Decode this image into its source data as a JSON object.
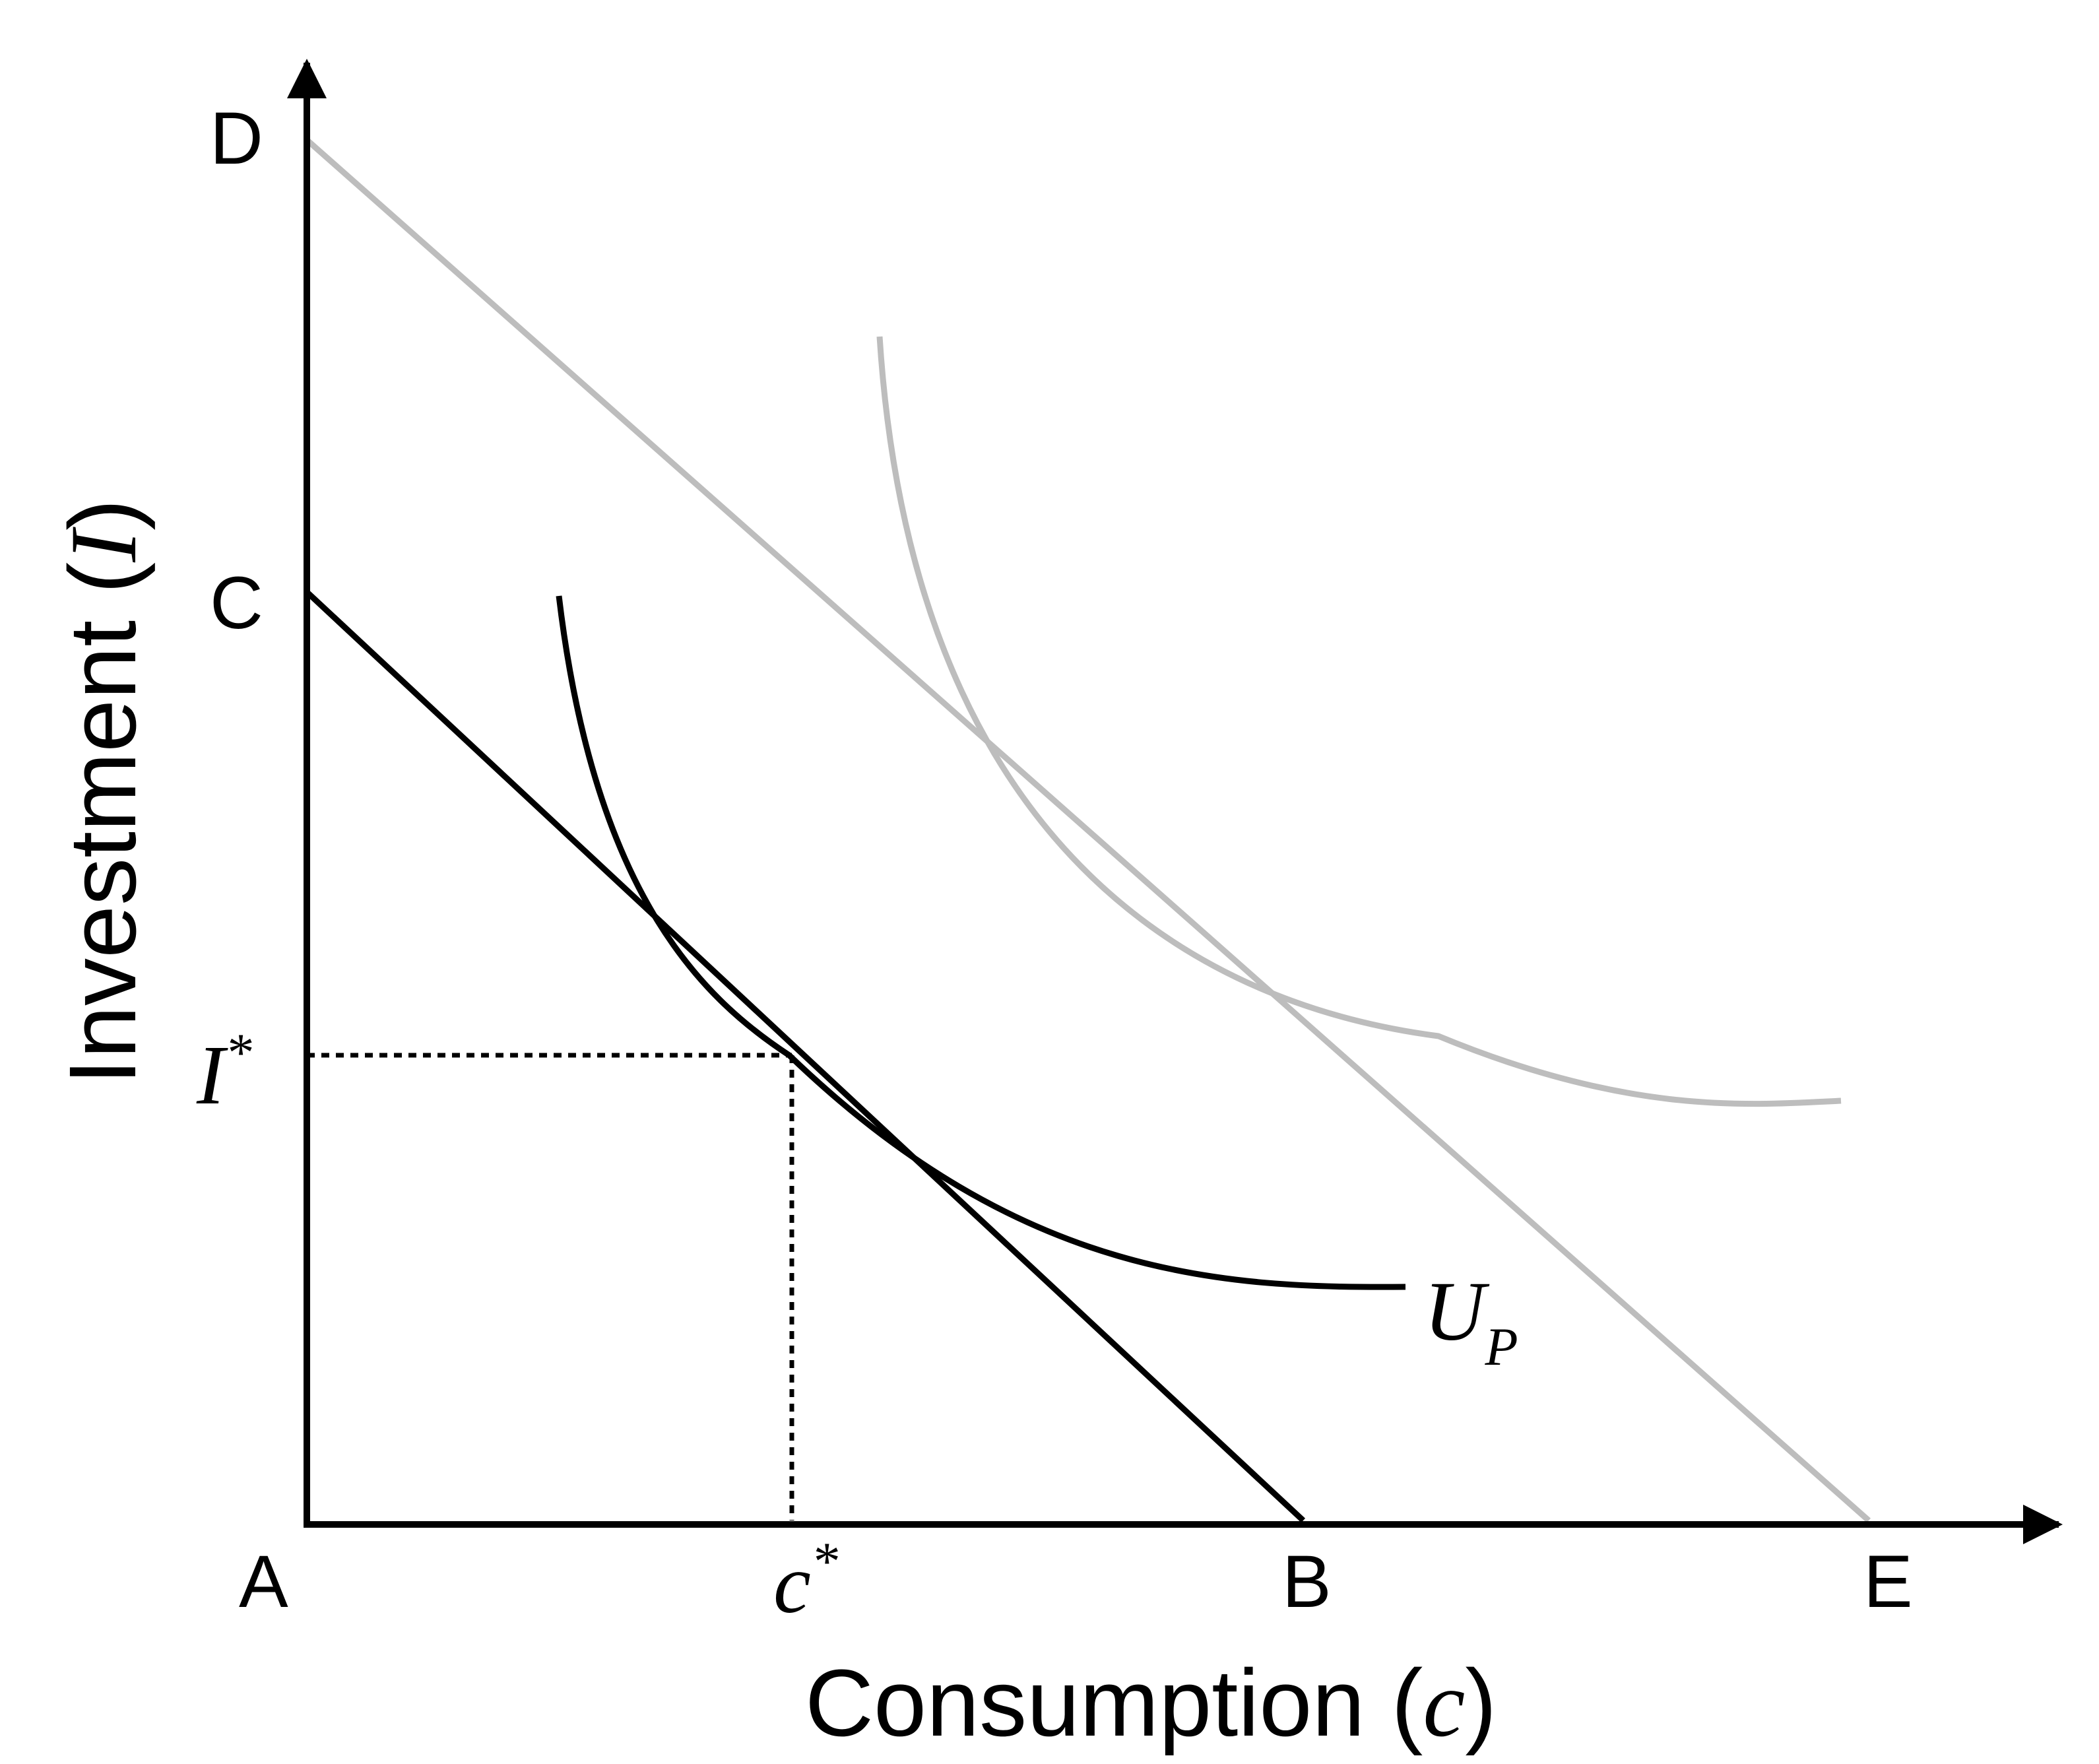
{
  "diagram": {
    "point_labels": {
      "origin": "A",
      "current_budget_x_intercept": "B",
      "current_budget_y_intercept": "C",
      "new_budget_y_intercept": "D",
      "new_budget_x_intercept": "E"
    },
    "axis_labels": {
      "x_prefix": "Consumption (",
      "x_symbol": "c",
      "x_suffix": ")",
      "y_prefix": "Investment (",
      "y_symbol": "I",
      "y_suffix": ")"
    },
    "optimum_labels": {
      "c_base": "c",
      "c_sup": "*",
      "i_base": "I",
      "i_sup": "*"
    },
    "curve_labels": {
      "indifference_base": "U",
      "indifference_sub": "P"
    },
    "colors": {
      "current": "#000000",
      "new": "#bdbdbd",
      "guides": "#000000"
    }
  }
}
